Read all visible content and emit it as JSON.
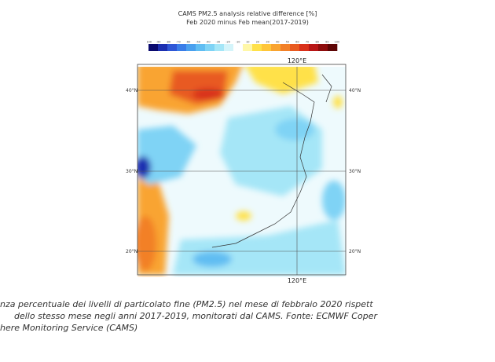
{
  "figure": {
    "title_line1": "CAMS PM2.5 analysis relative difference [%]",
    "title_line2": "Feb 2020 minus Feb mean(2017-2019)",
    "colorbar": {
      "ticks": [
        "-100",
        "-90",
        "-80",
        "-70",
        "-60",
        "-50",
        "-40",
        "-30",
        "-20",
        "-10",
        "10",
        "20",
        "30",
        "40",
        "50",
        "60",
        "70",
        "80",
        "90",
        "100"
      ],
      "colors": [
        "#0a0a6e",
        "#1c2fb0",
        "#2f57d6",
        "#3a7de8",
        "#4aa0ee",
        "#60bdf2",
        "#7fd3f5",
        "#a5e6f7",
        "#d4f4fa",
        "#ffffff",
        "#fff7a8",
        "#ffe14a",
        "#ffc63a",
        "#f9a431",
        "#f28028",
        "#e85a20",
        "#d9301a",
        "#b81616",
        "#8e0d0d",
        "#5e0606"
      ]
    },
    "lat_labels": [
      "40°N",
      "30°N",
      "20°N"
    ],
    "lon_labels": [
      "120°E",
      "120°E"
    ]
  },
  "caption": {
    "line1": "nza percentuale dei livelli di particolato fine (PM2.5) nel mese di febbraio 2020 rispett",
    "line2": "dello stesso mese negli anni 2017-2019, monitorati dal CAMS. Fonte: ECMWF Coper",
    "line3": "here Monitoring Service (CAMS)"
  }
}
